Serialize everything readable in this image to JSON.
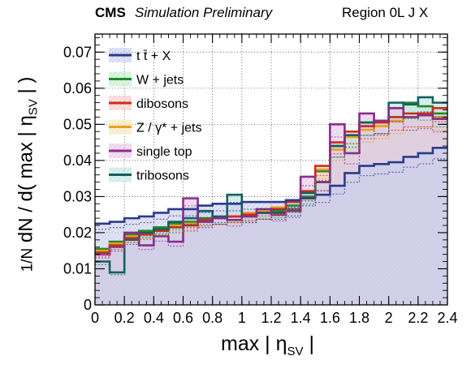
{
  "header": {
    "experiment": "CMS",
    "status": "Simulation Preliminary",
    "region": "Region 0L J X"
  },
  "chart_data": {
    "type": "step-histogram",
    "xlabel": "max | η_SV |",
    "ylabel": "1/N dN/d( max | η_SV | )",
    "xlim": [
      0,
      2.4
    ],
    "ylim": [
      0,
      0.075
    ],
    "grid": true,
    "legend_position": "top-left",
    "x_ticks": [
      "0",
      "0.2",
      "0.4",
      "0.6",
      "0.8",
      "1",
      "1.2",
      "1.4",
      "1.6",
      "1.8",
      "2",
      "2.2",
      "2.4"
    ],
    "y_ticks": [
      "0",
      "0.01",
      "0.02",
      "0.03",
      "0.04",
      "0.05",
      "0.06",
      "0.07"
    ],
    "bin_edges": [
      0,
      0.1,
      0.2,
      0.3,
      0.4,
      0.5,
      0.6,
      0.7,
      0.8,
      0.9,
      1.0,
      1.1,
      1.2,
      1.3,
      1.4,
      1.5,
      1.6,
      1.7,
      1.8,
      1.9,
      2.0,
      2.1,
      2.2,
      2.3,
      2.4
    ],
    "series": [
      {
        "name": "t t̄ + X",
        "color": "#2b3a8c",
        "fill": "#c9cdee",
        "values": [
          0.0225,
          0.023,
          0.024,
          0.0245,
          0.0255,
          0.0265,
          0.0265,
          0.0275,
          0.028,
          0.028,
          0.0285,
          0.0285,
          0.0285,
          0.029,
          0.0295,
          0.0305,
          0.033,
          0.0365,
          0.0385,
          0.039,
          0.0395,
          0.041,
          0.042,
          0.0435
        ]
      },
      {
        "name": "W + jets",
        "color": "#1e8a2e",
        "fill": "#c3ecc8",
        "values": [
          0.0155,
          0.0175,
          0.0195,
          0.0205,
          0.0215,
          0.0225,
          0.023,
          0.024,
          0.024,
          0.0245,
          0.025,
          0.0255,
          0.026,
          0.0275,
          0.03,
          0.037,
          0.044,
          0.048,
          0.0505,
          0.051,
          0.0545,
          0.056,
          0.055,
          0.053
        ]
      },
      {
        "name": "dibosons",
        "color": "#d12a1e",
        "fill": "#f4cbc7",
        "values": [
          0.0145,
          0.0165,
          0.0185,
          0.0195,
          0.0205,
          0.0215,
          0.022,
          0.0235,
          0.024,
          0.0245,
          0.025,
          0.0255,
          0.0265,
          0.0285,
          0.0315,
          0.0385,
          0.045,
          0.048,
          0.0495,
          0.0505,
          0.052,
          0.053,
          0.053,
          0.0545
        ]
      },
      {
        "name": "Z / γ* + jets",
        "color": "#e8a01e",
        "fill": "#f8e5b7",
        "values": [
          0.015,
          0.017,
          0.019,
          0.02,
          0.021,
          0.022,
          0.0225,
          0.0235,
          0.024,
          0.0245,
          0.0255,
          0.026,
          0.027,
          0.0285,
          0.031,
          0.0375,
          0.043,
          0.0465,
          0.0485,
          0.0495,
          0.051,
          0.052,
          0.053,
          0.052
        ]
      },
      {
        "name": "single top",
        "color": "#8e2b8e",
        "fill": "#e5c7e5",
        "values": [
          0.014,
          0.016,
          0.02,
          0.0165,
          0.019,
          0.0175,
          0.0295,
          0.023,
          0.024,
          0.0235,
          0.0245,
          0.0265,
          0.025,
          0.026,
          0.0355,
          0.034,
          0.05,
          0.042,
          0.053,
          0.051,
          0.0545,
          0.052,
          0.0525,
          0.0515
        ]
      },
      {
        "name": "tribosons",
        "color": "#15605c",
        "fill": "#c0e4e0",
        "values": [
          0.012,
          0.009,
          0.018,
          0.02,
          0.021,
          0.023,
          0.024,
          0.026,
          0.0245,
          0.0305,
          0.0245,
          0.0255,
          0.0255,
          0.0265,
          0.031,
          0.034,
          0.044,
          0.047,
          0.0505,
          0.051,
          0.056,
          0.0555,
          0.0575,
          0.056
        ]
      }
    ]
  }
}
